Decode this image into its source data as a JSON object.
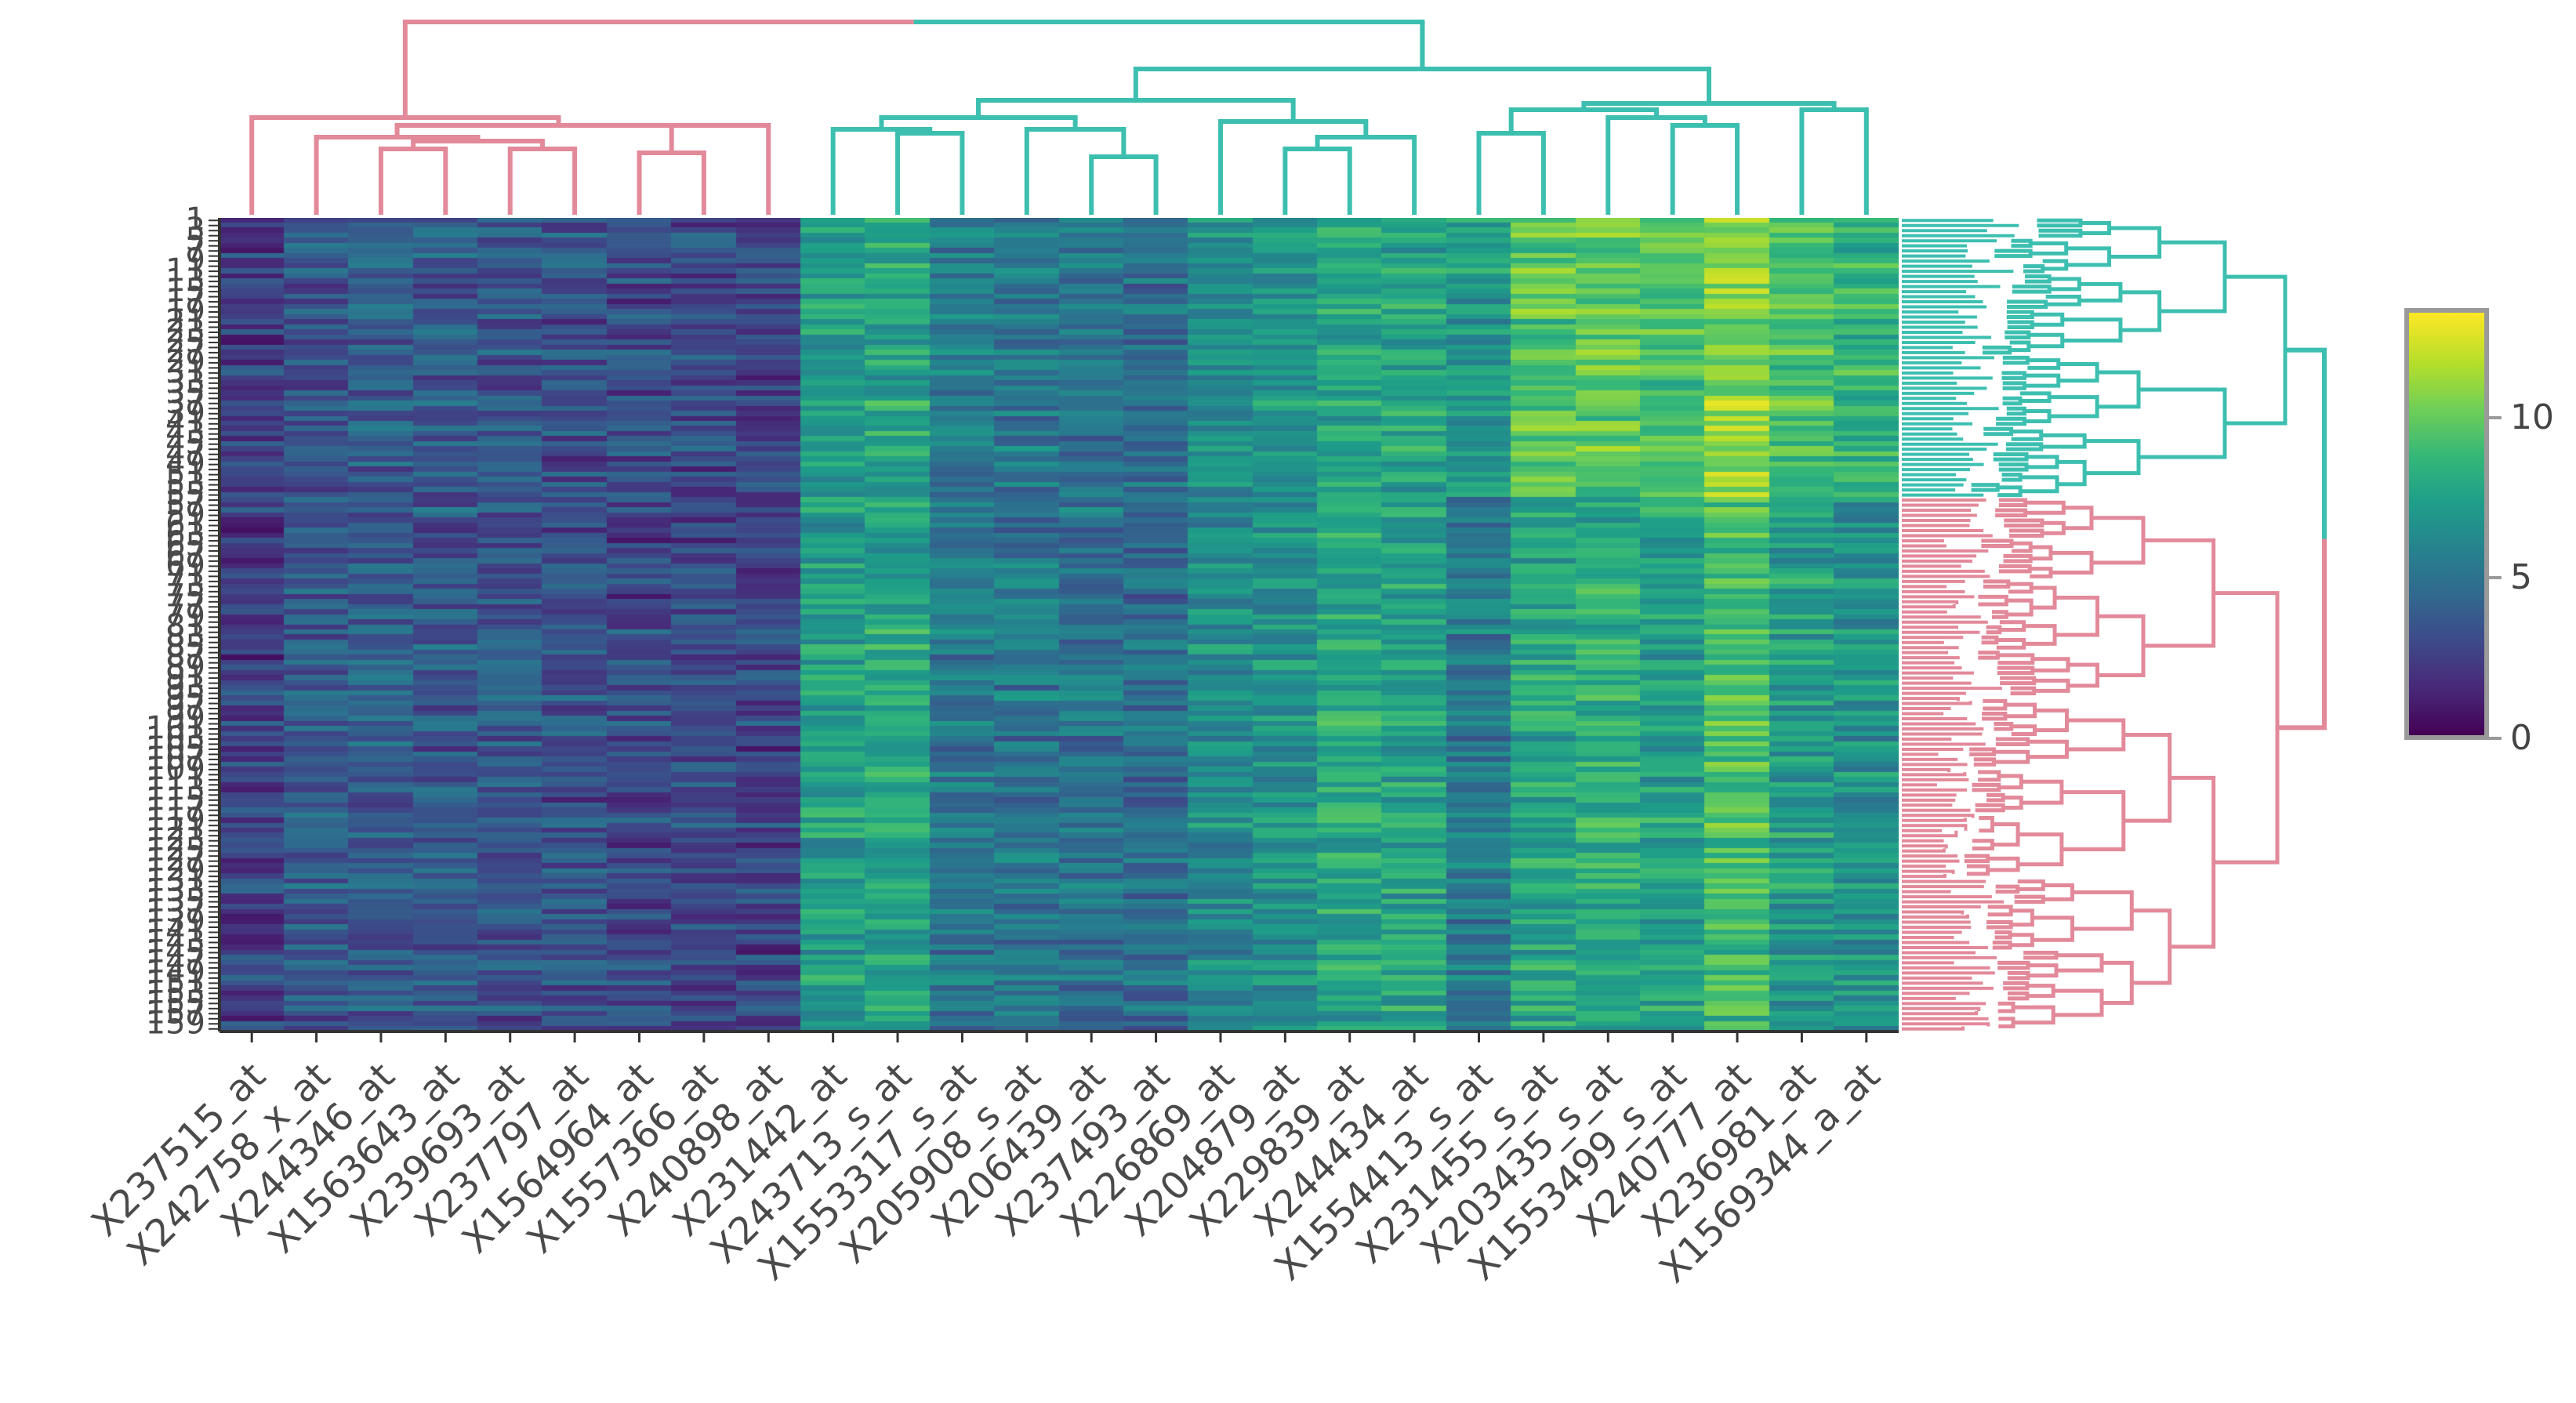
{
  "chart_data": {
    "type": "heatmap",
    "title": "",
    "columns": [
      "X237515_at",
      "X242758_x_at",
      "X244346_at",
      "X1563643_at",
      "X239693_at",
      "X237797_at",
      "X1564964_at",
      "X1557366_at",
      "X240898_at",
      "X231442_at",
      "X243713_s_at",
      "X1553317_s_at",
      "X205908_s_at",
      "X206439_at",
      "X237493_at",
      "X226869_at",
      "X204879_at",
      "X229839_at",
      "X244434_at",
      "X1554413_s_at",
      "X231455_s_at",
      "X203435_s_at",
      "X1553499_s_at",
      "X240777_at",
      "X236981_at",
      "X1569344_a_at"
    ],
    "column_group_means": [
      2.5,
      3.6,
      3.8,
      3.7,
      3.4,
      3.3,
      3.0,
      3.0,
      2.8,
      7.2,
      7.6,
      5.2,
      5.1,
      4.8,
      4.6,
      6.3,
      6.6,
      7.7,
      7.5,
      5.9,
      8.3,
      8.6,
      8.0,
      9.6,
      7.8,
      7.3
    ],
    "row_count": 160,
    "row_clusters": [
      {
        "name": "cluster-1",
        "color": "#3dbfb0",
        "rows": 55
      },
      {
        "name": "cluster-2",
        "color": "#e2899a",
        "rows": 105
      }
    ],
    "column_clusters": [
      {
        "name": "cluster-A",
        "color": "#e2899a",
        "columns": 9
      },
      {
        "name": "cluster-B",
        "color": "#3dbfb0",
        "columns": 17
      }
    ],
    "colorscale": "viridis",
    "zlim": [
      0,
      13
    ],
    "colorbar_ticks": [
      0,
      5,
      10
    ],
    "colorbar_tick_labels": [
      "0",
      "5",
      "10"
    ]
  }
}
